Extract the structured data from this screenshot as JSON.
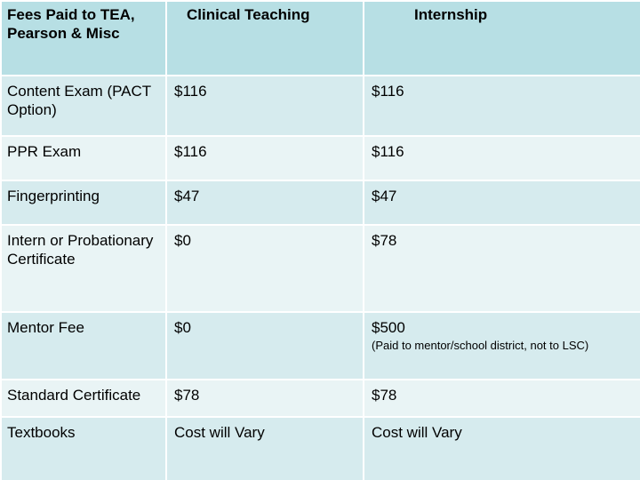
{
  "table": {
    "headers": {
      "col1": "Fees Paid to TEA, Pearson & Misc",
      "col2": "Clinical Teaching",
      "col3": "Internship"
    },
    "rows": [
      {
        "label": "Content Exam (PACT Option)",
        "clinical": "$116",
        "internship": "$116",
        "note": ""
      },
      {
        "label": "PPR Exam",
        "clinical": "$116",
        "internship": "$116",
        "note": ""
      },
      {
        "label": "Fingerprinting",
        "clinical": "$47",
        "internship": "$47",
        "note": ""
      },
      {
        "label": "Intern or Probationary Certificate",
        "clinical": "$0",
        "internship": "$78",
        "note": ""
      },
      {
        "label": "Mentor Fee",
        "clinical": "$0",
        "internship": "$500",
        "note": "(Paid to mentor/school district, not to LSC)"
      },
      {
        "label": "Standard Certificate",
        "clinical": "$78",
        "internship": "$78",
        "note": ""
      },
      {
        "label": "Textbooks",
        "clinical": "Cost will Vary",
        "internship": "Cost will Vary",
        "note": ""
      }
    ]
  },
  "colors": {
    "header_bg": "#b7dfe4",
    "row_odd_bg": "#d6ebee",
    "row_even_bg": "#e9f4f5"
  }
}
